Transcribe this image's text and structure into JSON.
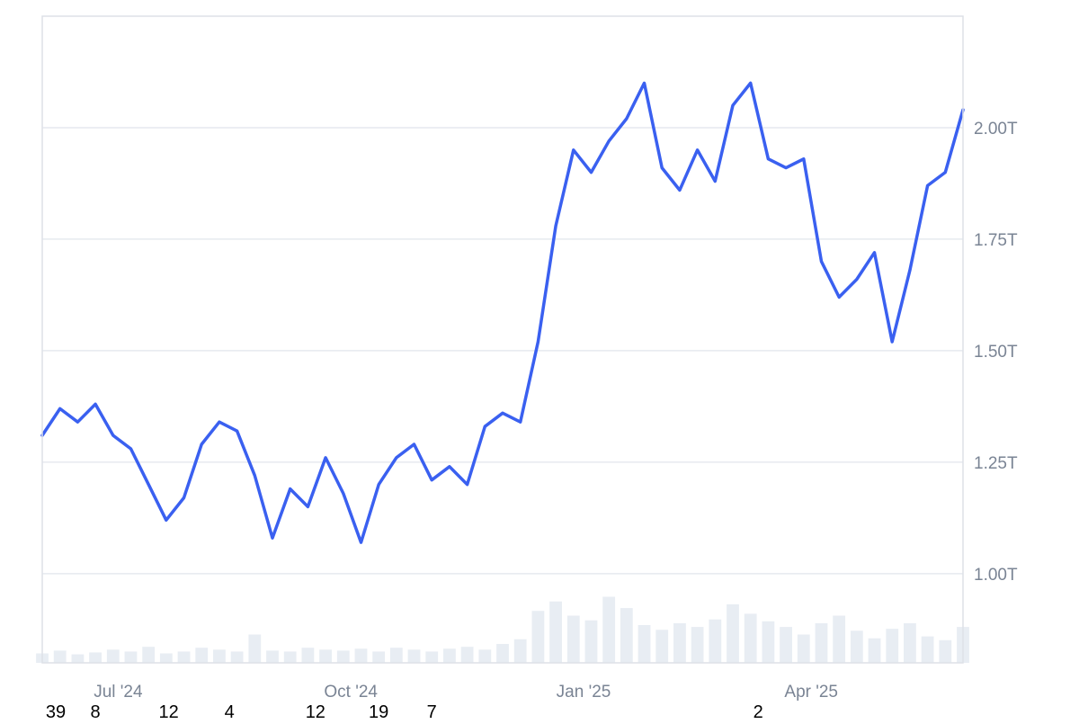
{
  "chart_data": {
    "type": "line",
    "x": [
      "2024-06-01",
      "2024-06-08",
      "2024-06-15",
      "2024-06-22",
      "2024-06-29",
      "2024-07-06",
      "2024-07-13",
      "2024-07-20",
      "2024-07-27",
      "2024-08-03",
      "2024-08-10",
      "2024-08-17",
      "2024-08-24",
      "2024-08-31",
      "2024-09-07",
      "2024-09-14",
      "2024-09-21",
      "2024-09-28",
      "2024-10-05",
      "2024-10-12",
      "2024-10-19",
      "2024-10-26",
      "2024-11-02",
      "2024-11-09",
      "2024-11-16",
      "2024-11-23",
      "2024-11-30",
      "2024-12-07",
      "2024-12-14",
      "2024-12-21",
      "2024-12-28",
      "2025-01-04",
      "2025-01-11",
      "2025-01-18",
      "2025-01-25",
      "2025-02-01",
      "2025-02-08",
      "2025-02-15",
      "2025-02-22",
      "2025-03-01",
      "2025-03-08",
      "2025-03-15",
      "2025-03-22",
      "2025-03-29",
      "2025-04-05",
      "2025-04-12",
      "2025-04-19",
      "2025-04-26",
      "2025-05-03",
      "2025-05-10",
      "2025-05-17",
      "2025-05-24",
      "2025-05-31"
    ],
    "series": [
      {
        "values": [
          1.31,
          1.37,
          1.34,
          1.38,
          1.31,
          1.28,
          1.2,
          1.12,
          1.17,
          1.29,
          1.34,
          1.32,
          1.22,
          1.08,
          1.19,
          1.15,
          1.26,
          1.18,
          1.07,
          1.2,
          1.26,
          1.29,
          1.21,
          1.24,
          1.2,
          1.33,
          1.36,
          1.34,
          1.52,
          1.78,
          1.95,
          1.9,
          1.97,
          2.02,
          2.1,
          1.91,
          1.86,
          1.95,
          1.88,
          2.05,
          2.1,
          1.93,
          1.91,
          1.93,
          1.7,
          1.62,
          1.66,
          1.72,
          1.52,
          1.68,
          1.87,
          1.9,
          2.04
        ],
        "color": "#3a60f0"
      }
    ],
    "volume": [
      0.1,
      0.13,
      0.09,
      0.11,
      0.14,
      0.12,
      0.17,
      0.1,
      0.12,
      0.16,
      0.14,
      0.12,
      0.3,
      0.13,
      0.12,
      0.16,
      0.14,
      0.13,
      0.15,
      0.12,
      0.16,
      0.14,
      0.12,
      0.15,
      0.17,
      0.14,
      0.2,
      0.25,
      0.55,
      0.65,
      0.5,
      0.45,
      0.7,
      0.58,
      0.4,
      0.35,
      0.42,
      0.38,
      0.46,
      0.62,
      0.52,
      0.44,
      0.38,
      0.3,
      0.42,
      0.5,
      0.34,
      0.26,
      0.36,
      0.42,
      0.28,
      0.24,
      0.38
    ],
    "volume_color": "#e8edf3",
    "ylim": [
      0.8,
      2.25
    ],
    "yticks": [
      1.0,
      1.25,
      1.5,
      1.75,
      2.0
    ],
    "ytick_labels": [
      "1.00T",
      "1.25T",
      "1.50T",
      "1.75T",
      "2.00T"
    ],
    "xticks": [
      {
        "date": "2024-07-01",
        "label": "Jul '24"
      },
      {
        "date": "2024-10-01",
        "label": "Oct '24"
      },
      {
        "date": "2025-01-01",
        "label": "Jan '25"
      },
      {
        "date": "2025-04-01",
        "label": "Apr '25"
      }
    ],
    "bottom_labels": [
      {
        "date": "2024-06-01",
        "label": "39"
      },
      {
        "date": "2024-06-22",
        "label": "8"
      },
      {
        "date": "2024-07-21",
        "label": "12"
      },
      {
        "date": "2024-08-14",
        "label": "4"
      },
      {
        "date": "2024-09-17",
        "label": "12"
      },
      {
        "date": "2024-10-12",
        "label": "19"
      },
      {
        "date": "2024-11-02",
        "label": "7"
      },
      {
        "date": "2025-03-11",
        "label": "2"
      }
    ],
    "grid": true,
    "axis_side": "right",
    "line_color": "#3a60f0",
    "grid_color": "#e6e9ef",
    "frame_color": "#dde1e7"
  }
}
